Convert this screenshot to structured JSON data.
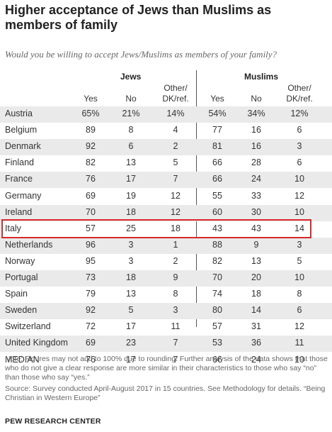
{
  "title": "Higher acceptance of Jews than Muslims as members of family",
  "subtitle": "Would you be willing to accept Jews/Muslims as members of your family?",
  "highlight_color": "#d7292a",
  "note": "Note: Figures may not add to 100% due to rounding. Further analysis of the data shows that those who do not give a clear response are more similar in their characteristics to those who say “no” than those who say “yes.”",
  "source": "Source: Survey conducted April-August 2017 in 15 countries. See Methodology for details. “Being Christian in Western Europe”",
  "brand": "PEW RESEARCH CENTER",
  "chart_data": {
    "type": "table",
    "highlighted_row": "Italy",
    "groups": [
      "Jews",
      "Muslims"
    ],
    "columns": [
      "Yes",
      "No",
      "Other/\nDK/ref.",
      "Yes",
      "No",
      "Other/\nDK/ref."
    ],
    "rows": [
      {
        "country": "Austria",
        "values": [
          "65%",
          "21%",
          "14%",
          "54%",
          "34%",
          "12%"
        ]
      },
      {
        "country": "Belgium",
        "values": [
          "89",
          "8",
          "4",
          "77",
          "16",
          "6"
        ]
      },
      {
        "country": "Denmark",
        "values": [
          "92",
          "6",
          "2",
          "81",
          "16",
          "3"
        ]
      },
      {
        "country": "Finland",
        "values": [
          "82",
          "13",
          "5",
          "66",
          "28",
          "6"
        ]
      },
      {
        "country": "France",
        "values": [
          "76",
          "17",
          "7",
          "66",
          "24",
          "10"
        ]
      },
      {
        "country": "Germany",
        "values": [
          "69",
          "19",
          "12",
          "55",
          "33",
          "12"
        ]
      },
      {
        "country": "Ireland",
        "values": [
          "70",
          "18",
          "12",
          "60",
          "30",
          "10"
        ]
      },
      {
        "country": "Italy",
        "values": [
          "57",
          "25",
          "18",
          "43",
          "43",
          "14"
        ]
      },
      {
        "country": "Netherlands",
        "values": [
          "96",
          "3",
          "1",
          "88",
          "9",
          "3"
        ]
      },
      {
        "country": "Norway",
        "values": [
          "95",
          "3",
          "2",
          "82",
          "13",
          "5"
        ]
      },
      {
        "country": "Portugal",
        "values": [
          "73",
          "18",
          "9",
          "70",
          "20",
          "10"
        ]
      },
      {
        "country": "Spain",
        "values": [
          "79",
          "13",
          "8",
          "74",
          "18",
          "8"
        ]
      },
      {
        "country": "Sweden",
        "values": [
          "92",
          "5",
          "3",
          "80",
          "14",
          "6"
        ]
      },
      {
        "country": "Switzerland",
        "values": [
          "72",
          "17",
          "11",
          "57",
          "31",
          "12"
        ]
      },
      {
        "country": "United Kingdom",
        "values": [
          "69",
          "23",
          "7",
          "53",
          "36",
          "11"
        ]
      },
      {
        "country": "MEDIAN",
        "values": [
          "76",
          "17",
          "7",
          "66",
          "24",
          "10"
        ]
      }
    ]
  }
}
